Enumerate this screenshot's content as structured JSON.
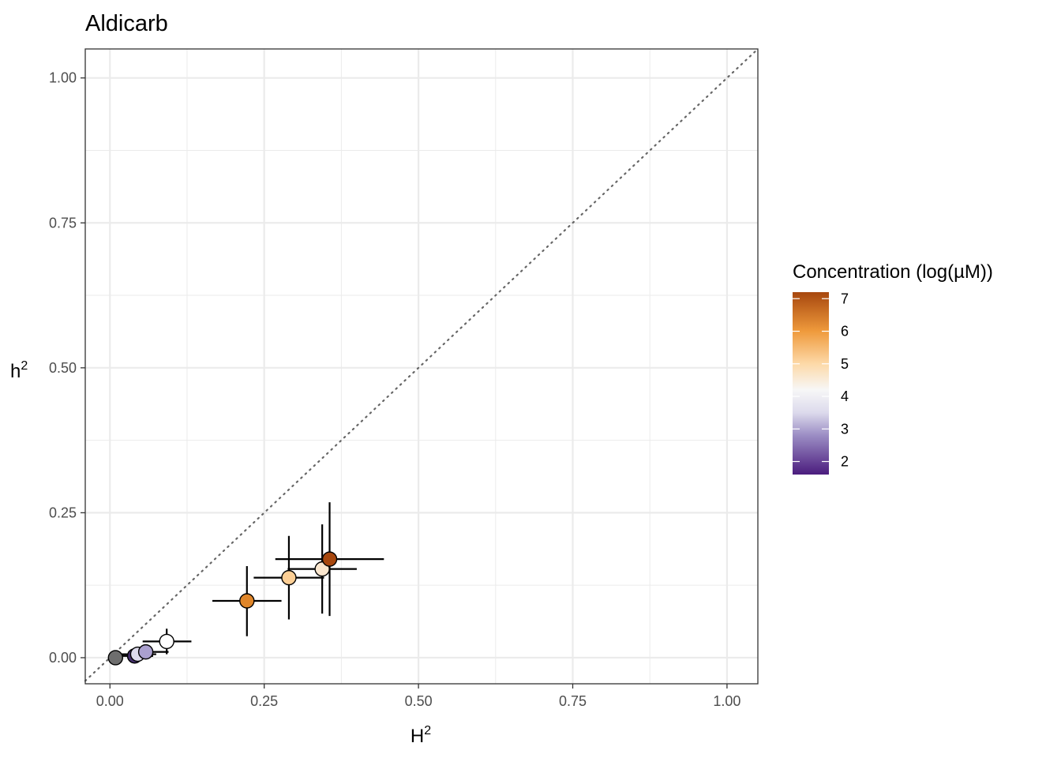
{
  "chart_data": {
    "type": "scatter",
    "title": "Aldicarb",
    "xlabel": {
      "base": "H",
      "superscript": "2"
    },
    "ylabel": {
      "base": "h",
      "superscript": "2"
    },
    "xlim": [
      -0.04,
      1.05
    ],
    "ylim": [
      -0.045,
      1.05
    ],
    "x_ticks": [
      0.0,
      0.25,
      0.5,
      0.75,
      1.0
    ],
    "x_tick_labels": [
      "0.00",
      "0.25",
      "0.50",
      "0.75",
      "1.00"
    ],
    "y_ticks": [
      0.0,
      0.25,
      0.5,
      0.75,
      1.0
    ],
    "y_tick_labels": [
      "0.00",
      "0.25",
      "0.50",
      "0.75",
      "1.00"
    ],
    "grid": true,
    "reference_line": {
      "style": "dotted",
      "slope": 1,
      "intercept": 0,
      "color": "#666666"
    },
    "legend": {
      "title": "Concentration (log(µM))",
      "placement": "right",
      "min": 1.6,
      "max": 7.2,
      "ticks": [
        2,
        3,
        4,
        5,
        6,
        7
      ],
      "tick_labels": [
        "2",
        "3",
        "4",
        "5",
        "6",
        "7"
      ],
      "gradient_stops": [
        {
          "value": 1.6,
          "color": "#4b1c7e"
        },
        {
          "value": 2.8,
          "color": "#9b8dc4"
        },
        {
          "value": 3.5,
          "color": "#dcdaec"
        },
        {
          "value": 4.2,
          "color": "#f7f7f7"
        },
        {
          "value": 5.0,
          "color": "#fdd9a8"
        },
        {
          "value": 6.0,
          "color": "#ef9a3c"
        },
        {
          "value": 7.2,
          "color": "#a7470e"
        }
      ]
    },
    "points": [
      {
        "x": 0.009,
        "y": 0.0,
        "xmin": 0.005,
        "xmax": 0.013,
        "ymin": 0.0,
        "ymax": 0.0,
        "fill": "#6e6e6e"
      },
      {
        "x": 0.04,
        "y": 0.003,
        "xmin": 0.01,
        "xmax": 0.07,
        "ymin": 0.0,
        "ymax": 0.006,
        "fill": "#45306e"
      },
      {
        "x": 0.045,
        "y": 0.006,
        "xmin": 0.015,
        "xmax": 0.075,
        "ymin": 0.0,
        "ymax": 0.012,
        "fill": "#dcdaec"
      },
      {
        "x": 0.058,
        "y": 0.01,
        "xmin": 0.03,
        "xmax": 0.095,
        "ymin": 0.0,
        "ymax": 0.02,
        "fill": "#aaa0cf"
      },
      {
        "x": 0.092,
        "y": 0.028,
        "xmin": 0.053,
        "xmax": 0.132,
        "ymin": 0.006,
        "ymax": 0.05,
        "fill": "#ffffff"
      },
      {
        "x": 0.222,
        "y": 0.098,
        "xmin": 0.166,
        "xmax": 0.278,
        "ymin": 0.037,
        "ymax": 0.158,
        "fill": "#e0862a"
      },
      {
        "x": 0.29,
        "y": 0.138,
        "xmin": 0.233,
        "xmax": 0.347,
        "ymin": 0.066,
        "ymax": 0.21,
        "fill": "#fdcf95"
      },
      {
        "x": 0.344,
        "y": 0.153,
        "xmin": 0.288,
        "xmax": 0.4,
        "ymin": 0.076,
        "ymax": 0.23,
        "fill": "#fbe7cf"
      },
      {
        "x": 0.356,
        "y": 0.17,
        "xmin": 0.268,
        "xmax": 0.444,
        "ymin": 0.072,
        "ymax": 0.268,
        "fill": "#a7470e"
      }
    ]
  }
}
